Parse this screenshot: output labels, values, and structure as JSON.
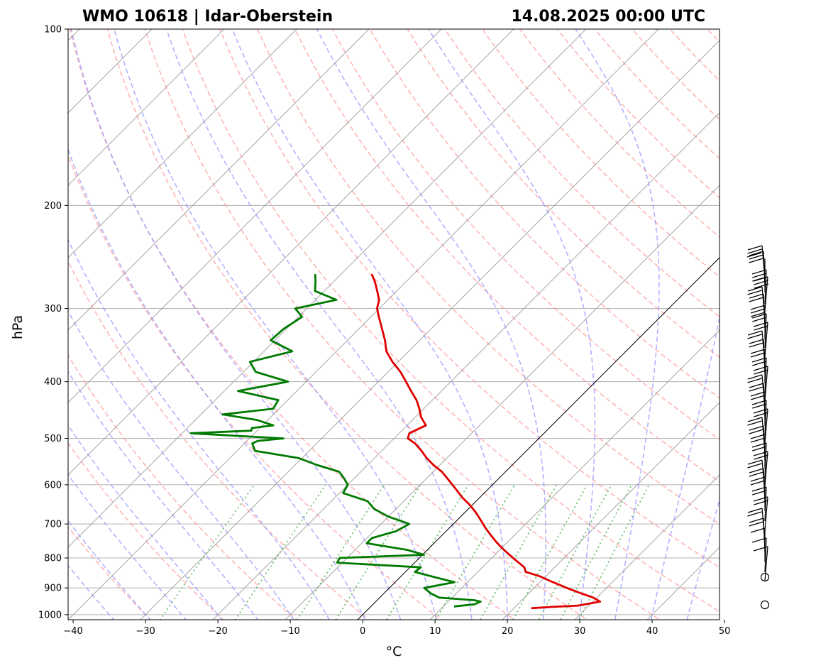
{
  "header": {
    "station": "WMO 10618 | Idar-Oberstein",
    "datetime": "14.08.2025 00:00 UTC"
  },
  "chart_data": {
    "type": "skew-t",
    "title_left": "WMO 10618 | Idar-Oberstein",
    "title_right": "14.08.2025 00:00 UTC",
    "xlabel": "°C",
    "ylabel": "hPa",
    "xlim": [
      -40,
      50
    ],
    "ylim": [
      1020,
      100
    ],
    "y_scale": "log",
    "skew": "45-degree isotherms",
    "x_ticks": [
      -40,
      -30,
      -20,
      -10,
      0,
      10,
      20,
      30,
      40,
      50
    ],
    "x_tick_labels": [
      "−40",
      "−30",
      "−20",
      "−10",
      "0",
      "10",
      "20",
      "30",
      "40",
      "50"
    ],
    "y_ticks": [
      100,
      200,
      300,
      400,
      500,
      600,
      700,
      800,
      900,
      1000
    ],
    "y_tick_labels": [
      "100",
      "200",
      "300",
      "400",
      "500",
      "600",
      "700",
      "800",
      "900",
      "1000"
    ],
    "grid": true,
    "colors": {
      "temperature": "#e00000",
      "dewpoint": "#007a00",
      "dry_adiabats": "#ff9c9c",
      "moist_adiabats": "#9a9aff",
      "mixing_ratio": "#5cb85c",
      "isotherms": "#999999",
      "zero_isotherm": "#000000",
      "barbs": "#000000"
    },
    "series": [
      {
        "key": "temperature",
        "pressure": [
          975,
          970,
          965,
          950,
          935,
          920,
          900,
          880,
          860,
          845,
          830,
          810,
          790,
          770,
          750,
          730,
          710,
          690,
          670,
          650,
          630,
          610,
          590,
          570,
          555,
          540,
          525,
          510,
          500,
          490,
          475,
          460,
          445,
          430,
          415,
          400,
          385,
          370,
          355,
          340,
          325,
          310,
          300,
          290,
          280,
          270,
          262
        ],
        "values": [
          22.4,
          25.0,
          28.5,
          31.0,
          29.5,
          27.3,
          24.5,
          21.8,
          19.2,
          16.6,
          15.8,
          13.9,
          12.0,
          10.1,
          8.3,
          6.6,
          4.9,
          3.3,
          1.6,
          -0.3,
          -2.5,
          -4.5,
          -6.6,
          -8.8,
          -10.9,
          -12.8,
          -14.5,
          -16.4,
          -18.1,
          -18.6,
          -17.4,
          -19.2,
          -20.6,
          -22.2,
          -24.2,
          -26.2,
          -28.3,
          -30.8,
          -33.1,
          -34.8,
          -36.8,
          -38.9,
          -40.3,
          -41.2,
          -42.7,
          -44.3,
          -45.8
        ]
      },
      {
        "key": "dewpoint",
        "pressure": [
          968,
          960,
          950,
          945,
          935,
          920,
          900,
          880,
          860,
          845,
          830,
          815,
          800,
          790,
          775,
          755,
          740,
          720,
          700,
          680,
          660,
          640,
          620,
          600,
          585,
          570,
          555,
          540,
          525,
          510,
          505,
          500,
          495,
          490,
          485,
          480,
          475,
          465,
          455,
          445,
          430,
          415,
          400,
          385,
          370,
          355,
          340,
          325,
          310,
          300,
          290,
          280,
          270,
          262
        ],
        "values": [
          11.5,
          14.0,
          14.5,
          13.5,
          8.2,
          6.5,
          4.8,
          8.2,
          4.2,
          1.3,
          1.5,
          -10.7,
          -11.0,
          0.2,
          -2.8,
          -9.3,
          -9.3,
          -6.9,
          -6.1,
          -10.0,
          -13.0,
          -15.0,
          -19.5,
          -20.0,
          -21.4,
          -23.0,
          -27.0,
          -30.5,
          -37.5,
          -38.9,
          -38.5,
          -35.3,
          -42.0,
          -48.8,
          -40.8,
          -41.1,
          -38.5,
          -41.5,
          -47.0,
          -40.8,
          -41.3,
          -48.1,
          -42.5,
          -48.3,
          -50.5,
          -46.1,
          -50.6,
          -50.4,
          -49.5,
          -51.6,
          -47.1,
          -51.3,
          -52.5,
          -53.6
        ]
      }
    ]
  }
}
